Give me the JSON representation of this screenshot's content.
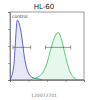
{
  "chart_data": {
    "type": "line",
    "title": "HL-60",
    "annotation": "control",
    "caption": "120072701",
    "x": [
      0,
      5,
      10,
      15,
      20,
      25,
      30,
      35,
      40,
      45,
      50,
      55,
      60,
      65,
      70,
      75,
      80,
      85,
      90,
      95,
      100
    ],
    "series": [
      {
        "name": "control",
        "color": "#3a3fc0",
        "values": [
          0,
          20,
          88,
          70,
          30,
          10,
          4,
          2,
          1,
          0,
          0,
          0,
          0,
          0,
          0,
          0,
          0,
          0,
          0,
          0,
          0
        ]
      },
      {
        "name": "HL-60",
        "color": "#2fbf5a",
        "values": [
          0,
          0,
          0,
          0,
          0,
          0,
          1,
          3,
          6,
          12,
          25,
          45,
          62,
          70,
          58,
          35,
          15,
          5,
          1,
          0,
          0
        ]
      }
    ],
    "gates": [
      {
        "from": 4,
        "to": 28,
        "y": 48
      },
      {
        "from": 48,
        "to": 82,
        "y": 48
      }
    ],
    "xlim": [
      0,
      100
    ],
    "ylim": [
      0,
      100
    ],
    "xticks": [
      0,
      25,
      50,
      75,
      100
    ],
    "yticks": [
      0,
      25,
      50,
      75,
      100
    ],
    "tick_labels": false
  }
}
